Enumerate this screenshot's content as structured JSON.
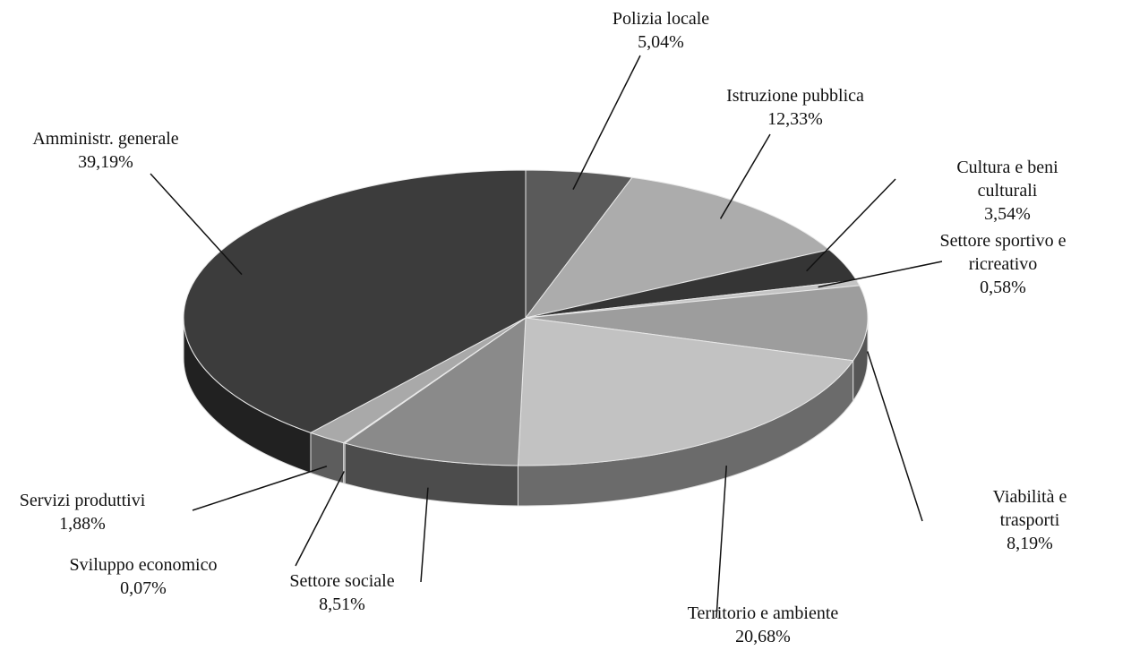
{
  "chart_data": {
    "type": "pie",
    "categories": [
      "Polizia locale",
      "Istruzione pubblica",
      "Cultura e beni culturali",
      "Settore sportivo e ricreativo",
      "Viabilità e trasporti",
      "Territorio e ambiente",
      "Settore sociale",
      "Sviluppo economico",
      "Servizi produttivi",
      "Amministr. generale"
    ],
    "values": [
      5.04,
      12.33,
      3.54,
      0.58,
      8.19,
      20.68,
      8.51,
      0.07,
      1.88,
      39.19
    ],
    "value_labels": [
      "5,04%",
      "12,33%",
      "3,54%",
      "0,58%",
      "8,19%",
      "20,68%",
      "8,51%",
      "0,07%",
      "1,88%",
      "39,19%"
    ],
    "colors": [
      "#5a5a5a",
      "#acacac",
      "#353535",
      "#c4c4c4",
      "#9d9d9d",
      "#c2c2c2",
      "#8a8a8a",
      "#7a7a7a",
      "#a9a9a9",
      "#3c3c3c"
    ]
  }
}
